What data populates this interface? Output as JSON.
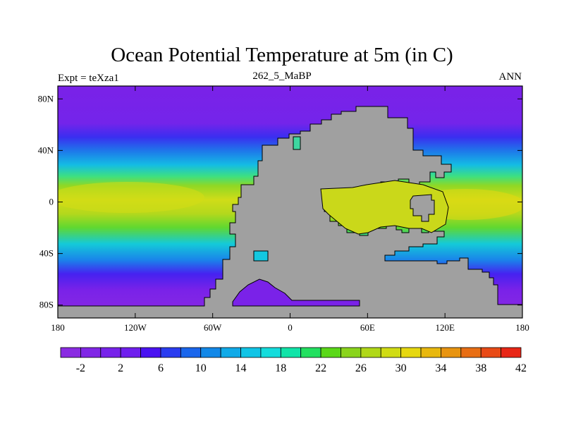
{
  "title": "Ocean Potential Temperature at 5m (in C)",
  "left_string": "Expt = teXza1",
  "center_string": "262_5_MaBP",
  "right_string": "ANN",
  "map": {
    "lon_range": [
      -180,
      180
    ],
    "lat_range": [
      -90,
      90
    ],
    "lat_tick_labels": [
      {
        "value": 80,
        "label": "80N"
      },
      {
        "value": 40,
        "label": "40N"
      },
      {
        "value": 0,
        "label": "0"
      },
      {
        "value": -40,
        "label": "40S"
      },
      {
        "value": -80,
        "label": "80S"
      }
    ],
    "lon_tick_labels": [
      {
        "value": -180,
        "label": "180"
      },
      {
        "value": -120,
        "label": "120W"
      },
      {
        "value": -60,
        "label": "60W"
      },
      {
        "value": 0,
        "label": "0"
      },
      {
        "value": 60,
        "label": "60E"
      },
      {
        "value": 120,
        "label": "120E"
      },
      {
        "value": 180,
        "label": "180"
      }
    ],
    "land_color": "#a0a0a0"
  },
  "colorbar": {
    "colors": [
      "#8a2be2",
      "#8026e6",
      "#7722ea",
      "#6f1fee",
      "#4a12f2",
      "#2a3cf0",
      "#1a66ec",
      "#1288e8",
      "#10aae8",
      "#10c4e6",
      "#14dcdc",
      "#10e4a8",
      "#22e060",
      "#5ad818",
      "#8ad41c",
      "#b0d818",
      "#d0dc14",
      "#e6d810",
      "#e8b80e",
      "#e89410",
      "#e86e14",
      "#e84a16",
      "#e82616"
    ],
    "labels": [
      {
        "index": 1,
        "label": "-2"
      },
      {
        "index": 3,
        "label": "2"
      },
      {
        "index": 5,
        "label": "6"
      },
      {
        "index": 7,
        "label": "10"
      },
      {
        "index": 9,
        "label": "14"
      },
      {
        "index": 11,
        "label": "18"
      },
      {
        "index": 13,
        "label": "22"
      },
      {
        "index": 15,
        "label": "26"
      },
      {
        "index": 17,
        "label": "30"
      },
      {
        "index": 19,
        "label": "34"
      },
      {
        "index": 21,
        "label": "38"
      },
      {
        "index": 23,
        "label": "42"
      }
    ]
  }
}
